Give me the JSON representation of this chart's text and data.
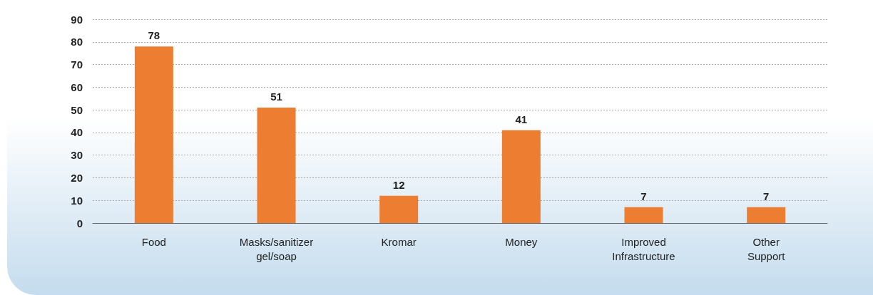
{
  "chart_data": {
    "type": "bar",
    "categories": [
      "Food",
      "Masks/sanitizer\ngel/soap",
      "Kromar",
      "Money",
      "Improved\nInfrastructure",
      "Other\nSupport"
    ],
    "values": [
      78,
      51,
      12,
      41,
      7,
      7
    ],
    "color": "#ed7d31",
    "ylim": [
      0,
      90
    ],
    "yticks": [
      0,
      10,
      20,
      30,
      40,
      50,
      60,
      70,
      80,
      90
    ],
    "grid": "y",
    "data_labels": true
  }
}
